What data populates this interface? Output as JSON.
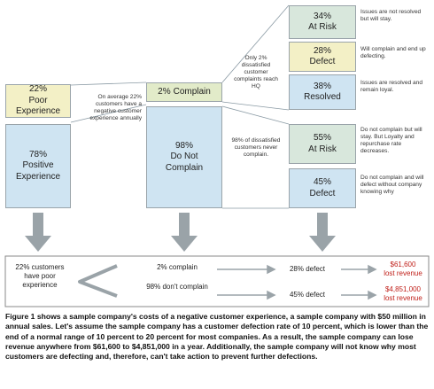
{
  "nodes": [
    {
      "percent": "22%",
      "label": "Poor Experience"
    },
    {
      "percent": "78%",
      "label": "Positive Experience"
    },
    {
      "percent": "2%",
      "label": "Complain"
    },
    {
      "percent": "98%",
      "label": "Do Not Complain"
    },
    {
      "percent": "34%",
      "label": "At Risk"
    },
    {
      "percent": "28%",
      "label": "Defect"
    },
    {
      "percent": "38%",
      "label": "Resolved"
    },
    {
      "percent": "55%",
      "label": "At Risk"
    },
    {
      "percent": "45%",
      "label": "Defect"
    }
  ],
  "annotations": [
    "On average 22% customers have a negative customer experience annually",
    "Only 2% dissatisfied customer complaints reach HQ",
    "98% of dissatisfied customers never complain."
  ],
  "descriptions": [
    "Issues are not resolved but will stay.",
    "Will complain and end up defecting.",
    "Issues are resolved and remain loyal.",
    "Do not complain but will stay. But Loyalty and repurchase rate decreases.",
    "Do not complain and will defect without company knowing why"
  ],
  "summary": {
    "start": "22% customers have poor experience",
    "complain": "2% complain",
    "not_complain": "98% don't complain",
    "defect_complain": "28% defect",
    "defect_not_complain": "45% defect",
    "losses": [
      {
        "amount": "$61,600",
        "label": "lost revenue"
      },
      {
        "amount": "$4,851,000",
        "label": "lost revenue"
      }
    ]
  },
  "caption": "Figure 1 shows a sample company's costs of a negative customer experience, a sample company with $50 million in annual sales. Let's assume the sample company has a customer defection rate of 10 percent, which is lower than the end of a normal range of 10 percent to 20 percent for most companies. As a result, the sample company can lose revenue anywhere from $61,600 to $4,851,000 in a year. Additionally, the sample company will not know why most customers are defecting and, therefore, can't take action to prevent further defections."
}
